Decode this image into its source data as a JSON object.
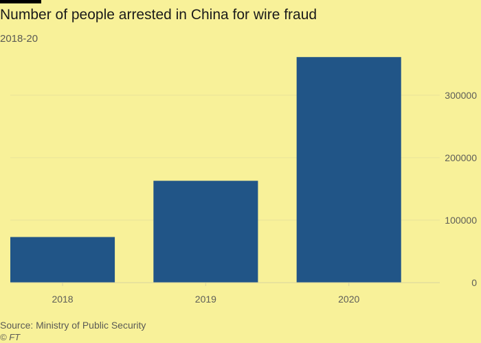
{
  "header": {
    "title": "Number of people arrested in China for wire fraud",
    "subtitle": "2018-20"
  },
  "footer": {
    "source": "Source: Ministry of Public Security",
    "credit": "© FT"
  },
  "colors": {
    "background": "#f8f199",
    "bar": "#215587",
    "gridline": "#e8e29a",
    "baseline": "#d8d2a0"
  },
  "chart_data": {
    "type": "bar",
    "title": "Number of people arrested in China for wire fraud",
    "subtitle": "2018-20",
    "categories": [
      "2018",
      "2019",
      "2020"
    ],
    "values": [
      73000,
      163000,
      361000
    ],
    "ylim": [
      0,
      370000
    ],
    "yticks": [
      0,
      100000,
      200000,
      300000
    ],
    "ytick_labels": [
      "0",
      "100000",
      "200000",
      "300000"
    ],
    "y_axis_position": "right",
    "grid": true,
    "legend": "none"
  }
}
